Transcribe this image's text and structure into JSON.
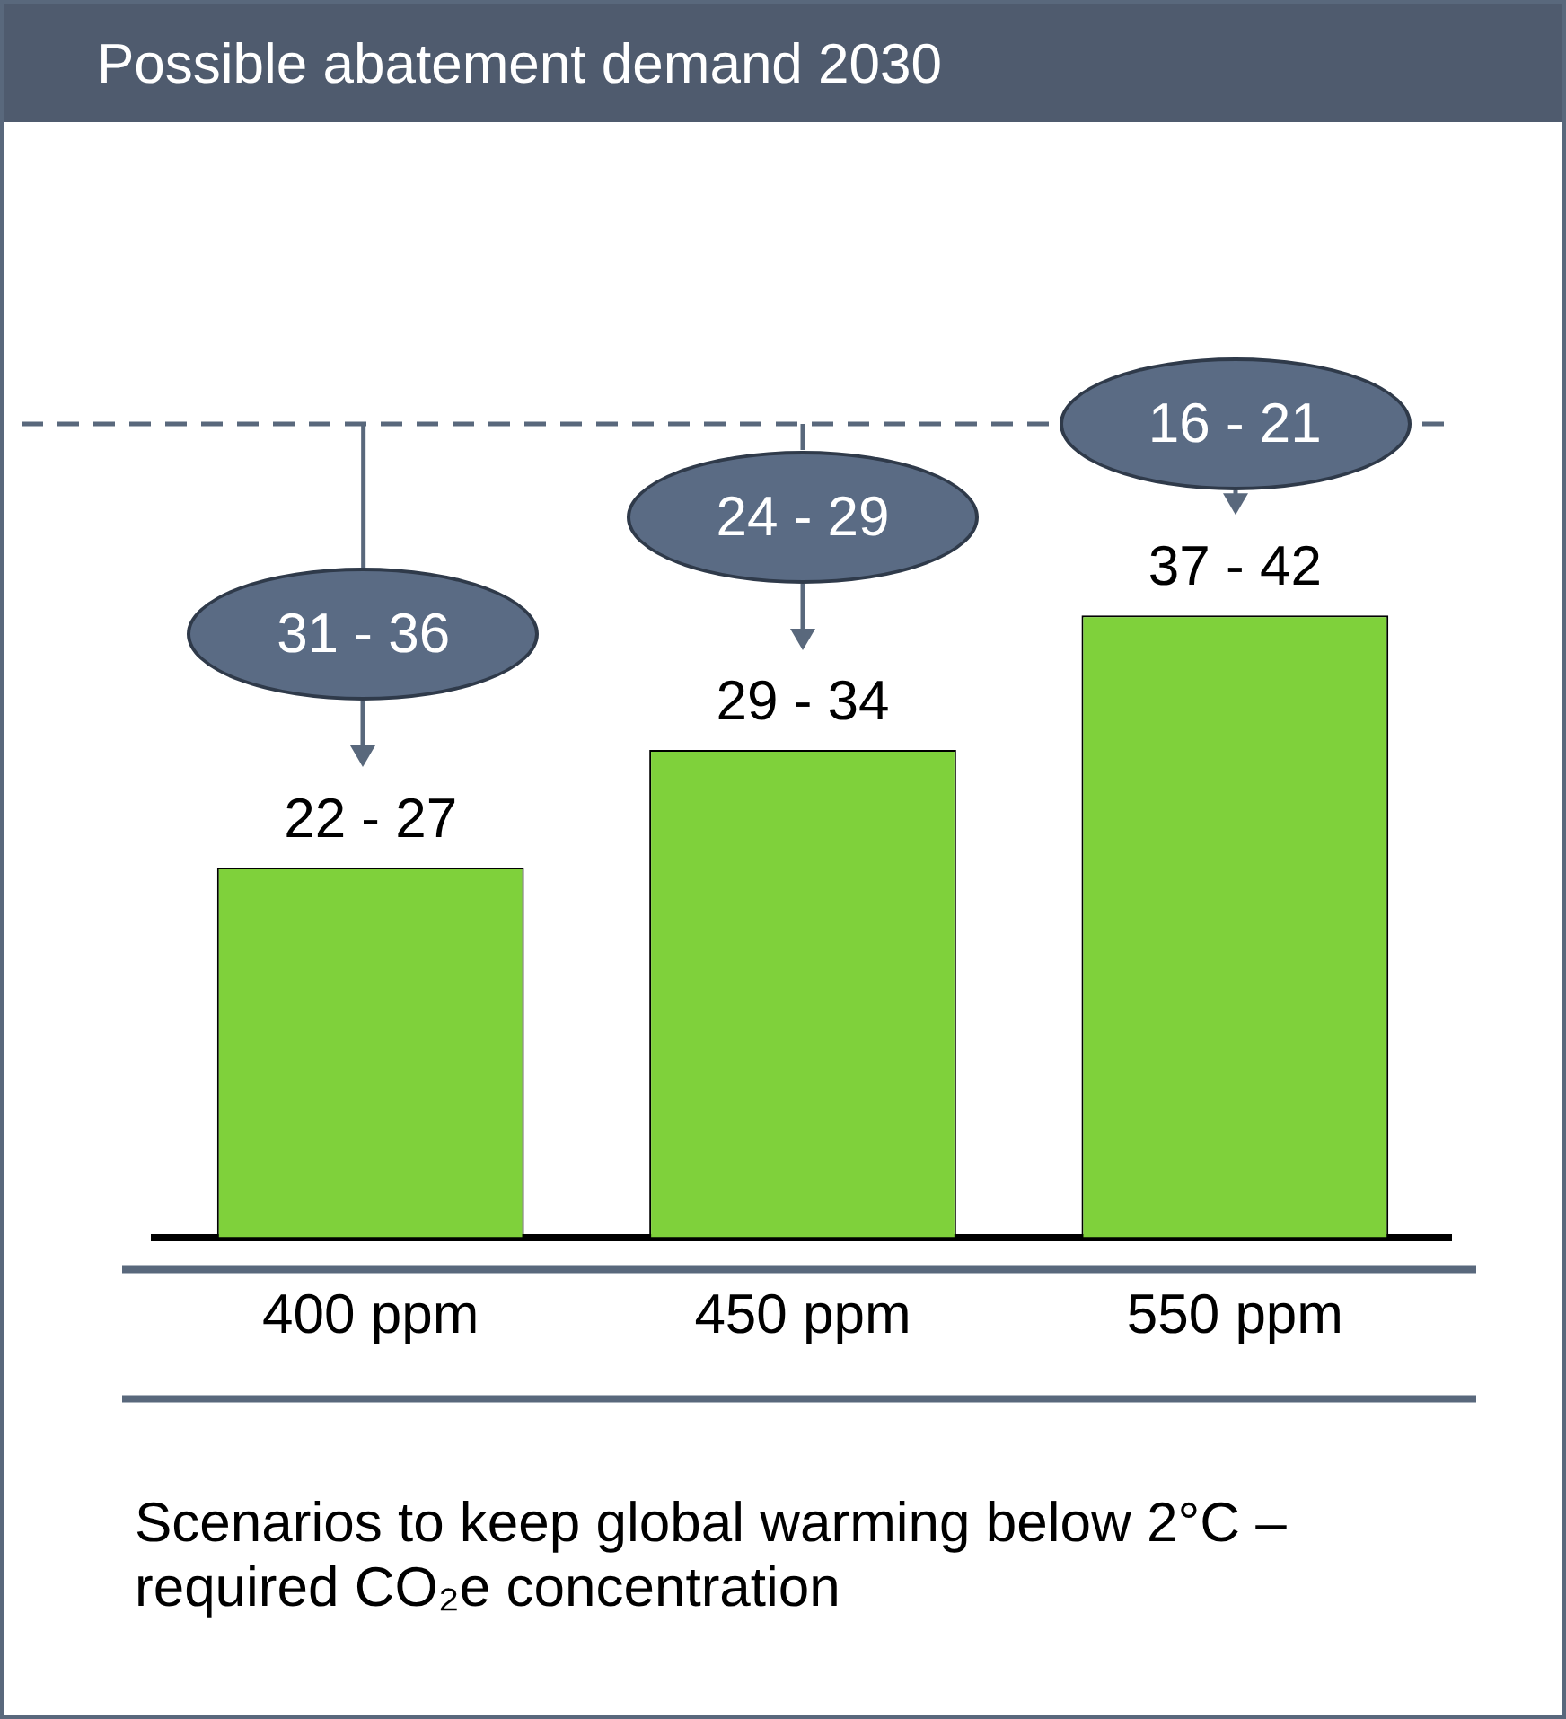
{
  "chart_data": {
    "type": "bar",
    "title": "Possible abatement demand 2030",
    "xlabel": "Scenarios to keep global warming below 2°C – required CO₂e concentration",
    "categories": [
      "400 ppm",
      "450 ppm",
      "550 ppm"
    ],
    "values": [
      22,
      29,
      37
    ],
    "value_labels": [
      "22 - 27",
      "29 - 34",
      "37 - 42"
    ],
    "color": "#7fd13b",
    "tick_labels": "x",
    "grid": false,
    "legend": false,
    "annotations": [
      "31 - 36",
      "24 - 29",
      "16 - 21"
    ]
  }
}
